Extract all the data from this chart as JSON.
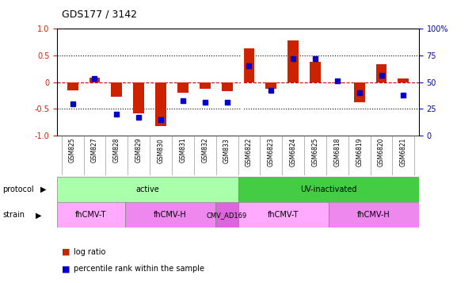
{
  "title": "GDS177 / 3142",
  "samples": [
    "GSM825",
    "GSM827",
    "GSM828",
    "GSM829",
    "GSM830",
    "GSM831",
    "GSM832",
    "GSM833",
    "GSM6822",
    "GSM6823",
    "GSM6824",
    "GSM6825",
    "GSM6818",
    "GSM6819",
    "GSM6820",
    "GSM6821"
  ],
  "log_ratio": [
    -0.15,
    0.08,
    -0.27,
    -0.58,
    -0.82,
    -0.2,
    -0.13,
    -0.17,
    0.63,
    -0.12,
    0.78,
    0.38,
    -0.02,
    -0.38,
    0.33,
    0.07
  ],
  "pct_rank": [
    30,
    53,
    20,
    17,
    15,
    33,
    31,
    31,
    65,
    42,
    72,
    72,
    51,
    40,
    56,
    38
  ],
  "bar_color": "#cc2200",
  "dot_color": "#0000cc",
  "protocol_groups": [
    {
      "label": "active",
      "start": 0,
      "end": 8,
      "color": "#aaffaa"
    },
    {
      "label": "UV-inactivated",
      "start": 8,
      "end": 16,
      "color": "#44cc44"
    }
  ],
  "strain_groups": [
    {
      "label": "fhCMV-T",
      "start": 0,
      "end": 3,
      "color": "#ffaaff"
    },
    {
      "label": "fhCMV-H",
      "start": 3,
      "end": 7,
      "color": "#ee88ee"
    },
    {
      "label": "CMV_AD169",
      "start": 7,
      "end": 8,
      "color": "#dd66dd"
    },
    {
      "label": "fhCMV-T",
      "start": 8,
      "end": 12,
      "color": "#ffaaff"
    },
    {
      "label": "fhCMV-H",
      "start": 12,
      "end": 16,
      "color": "#ee88ee"
    }
  ],
  "ylim": [
    -1.0,
    1.0
  ],
  "y_ticks_left": [
    -1.0,
    -0.5,
    0.0,
    0.5,
    1.0
  ],
  "y_ticks_right": [
    0,
    25,
    50,
    75,
    100
  ],
  "hline_y": 0.0,
  "dotted_lines": [
    -0.5,
    0.5
  ],
  "bar_width": 0.5
}
